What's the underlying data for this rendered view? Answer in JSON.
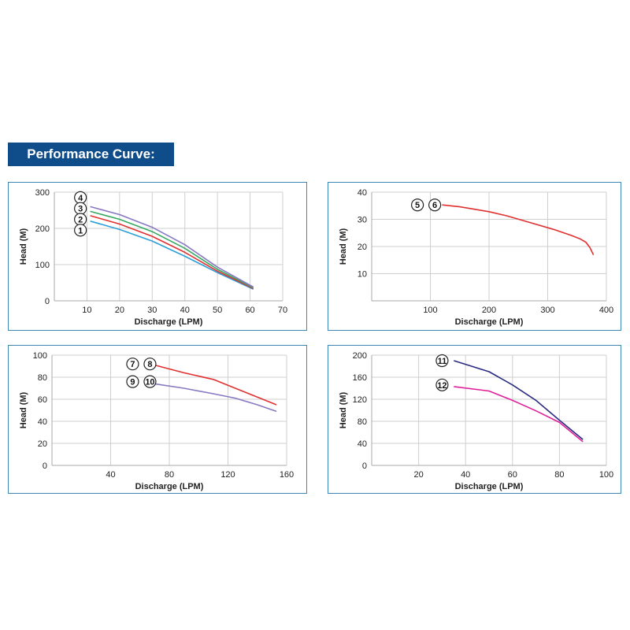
{
  "title": "Performance Curve:",
  "chart_data": [
    {
      "type": "line",
      "xlabel": "Discharge (LPM)",
      "ylabel": "Head (M)",
      "xlim": [
        0,
        70
      ],
      "ylim": [
        0,
        300
      ],
      "xticks": [
        10,
        20,
        30,
        40,
        50,
        60,
        70
      ],
      "yticks": [
        0,
        100,
        200,
        300
      ],
      "grid": true,
      "series": [
        {
          "name": "1",
          "color": "#2c9fd9",
          "x": [
            11,
            20,
            30,
            40,
            50,
            61
          ],
          "y": [
            220,
            197,
            165,
            123,
            78,
            32
          ]
        },
        {
          "name": "2",
          "color": "#e03030",
          "x": [
            11,
            20,
            30,
            40,
            50,
            61
          ],
          "y": [
            235,
            212,
            178,
            134,
            82,
            34
          ]
        },
        {
          "name": "3",
          "color": "#36a860",
          "x": [
            11,
            20,
            30,
            40,
            50,
            61
          ],
          "y": [
            247,
            225,
            191,
            145,
            87,
            36
          ]
        },
        {
          "name": "4",
          "color": "#8878c0",
          "x": [
            11,
            20,
            30,
            40,
            50,
            61
          ],
          "y": [
            260,
            238,
            203,
            155,
            93,
            38
          ]
        }
      ],
      "markers": [
        {
          "labels": [
            "4"
          ],
          "x": 8,
          "y": 285
        },
        {
          "labels": [
            "3"
          ],
          "x": 8,
          "y": 255
        },
        {
          "labels": [
            "2"
          ],
          "x": 8,
          "y": 225
        },
        {
          "labels": [
            "1"
          ],
          "x": 8,
          "y": 195
        }
      ]
    },
    {
      "type": "line",
      "xlabel": "Discharge (LPM)",
      "ylabel": "Head (M)",
      "xlim": [
        0,
        400
      ],
      "ylim": [
        0,
        40
      ],
      "xticks": [
        100,
        200,
        300,
        400
      ],
      "yticks": [
        10,
        20,
        30,
        40
      ],
      "grid": true,
      "series": [
        {
          "name": "5 / 6",
          "color": "#e03030",
          "x": [
            120,
            150,
            200,
            230,
            270,
            310,
            340,
            355,
            365,
            372,
            378
          ],
          "y": [
            35.3,
            34.6,
            32.8,
            31.3,
            28.8,
            26.3,
            24.1,
            22.8,
            21.6,
            19.6,
            16.9
          ]
        }
      ],
      "markers": [
        {
          "labels": [
            "5",
            "6"
          ],
          "x": 78,
          "y": 35.3
        }
      ]
    },
    {
      "type": "line",
      "xlabel": "Discharge (LPM)",
      "ylabel": "Head (M)",
      "xlim": [
        0,
        160
      ],
      "ylim": [
        0,
        100
      ],
      "xticks": [
        40,
        80,
        120,
        160
      ],
      "yticks": [
        0,
        20,
        40,
        60,
        80,
        100
      ],
      "grid": true,
      "series": [
        {
          "name": "7 / 8",
          "color": "#e03030",
          "x": [
            70,
            90,
            110,
            125,
            140,
            153
          ],
          "y": [
            91,
            84,
            78,
            70,
            62,
            55
          ]
        },
        {
          "name": "9 / 10",
          "color": "#8878c0",
          "x": [
            70,
            90,
            110,
            125,
            140,
            153
          ],
          "y": [
            74,
            70,
            65,
            61,
            55,
            49
          ]
        }
      ],
      "markers": [
        {
          "labels": [
            "7",
            "8"
          ],
          "x": 55,
          "y": 92
        },
        {
          "labels": [
            "9",
            "10"
          ],
          "x": 55,
          "y": 76
        }
      ]
    },
    {
      "type": "line",
      "xlabel": "Discharge (LPM)",
      "ylabel": "Head (M)",
      "xlim": [
        0,
        100
      ],
      "ylim": [
        0,
        200
      ],
      "xticks": [
        20,
        40,
        60,
        80,
        100
      ],
      "yticks": [
        0,
        40,
        80,
        120,
        160,
        200
      ],
      "grid": true,
      "series": [
        {
          "name": "11",
          "color": "#2a2a80",
          "x": [
            35,
            50,
            60,
            70,
            80,
            90
          ],
          "y": [
            190,
            170,
            146,
            118,
            82,
            47
          ]
        },
        {
          "name": "12",
          "color": "#e0209a",
          "x": [
            35,
            50,
            60,
            70,
            80,
            90
          ],
          "y": [
            143,
            135,
            118,
            99,
            78,
            43
          ]
        }
      ],
      "markers": [
        {
          "labels": [
            "11"
          ],
          "x": 30,
          "y": 190
        },
        {
          "labels": [
            "12"
          ],
          "x": 30,
          "y": 146
        }
      ]
    }
  ]
}
